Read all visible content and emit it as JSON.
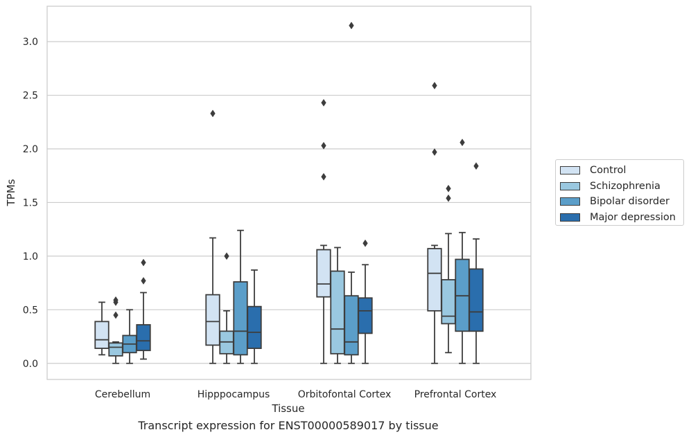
{
  "caption": "Transcript expression for ENST00000589017 by tissue",
  "chart_data": {
    "type": "box",
    "title": "",
    "xlabel": "Tissue",
    "ylabel": "TPMs",
    "ylim": [
      -0.15,
      3.33
    ],
    "yticks": [
      "0.0",
      "0.5",
      "1.0",
      "1.5",
      "2.0",
      "2.5",
      "3.0"
    ],
    "grid": "horizontal",
    "legend_position": "right",
    "categories": [
      "Cerebellum",
      "Hipppocampus",
      "Orbitofontal Cortex",
      "Prefrontal Cortex"
    ],
    "series": [
      {
        "name": "Control",
        "color": "#d2e3f3",
        "boxes": [
          {
            "whislo": 0.08,
            "q1": 0.14,
            "med": 0.22,
            "q3": 0.39,
            "whishi": 0.57,
            "fliers": []
          },
          {
            "whislo": 0.0,
            "q1": 0.17,
            "med": 0.39,
            "q3": 0.64,
            "whishi": 1.17,
            "fliers": [
              2.33
            ]
          },
          {
            "whislo": 0.0,
            "q1": 0.62,
            "med": 0.74,
            "q3": 1.06,
            "whishi": 1.1,
            "fliers": [
              1.74,
              2.03,
              2.43
            ]
          },
          {
            "whislo": 0.0,
            "q1": 0.49,
            "med": 0.84,
            "q3": 1.07,
            "whishi": 1.1,
            "fliers": [
              1.97,
              2.59
            ]
          }
        ]
      },
      {
        "name": "Schizophrenia",
        "color": "#9ac8e0",
        "boxes": [
          {
            "whislo": 0.0,
            "q1": 0.07,
            "med": 0.15,
            "q3": 0.19,
            "whishi": 0.2,
            "fliers": [
              0.45,
              0.57,
              0.59
            ]
          },
          {
            "whislo": 0.0,
            "q1": 0.09,
            "med": 0.2,
            "q3": 0.3,
            "whishi": 0.49,
            "fliers": [
              1.0
            ]
          },
          {
            "whislo": 0.0,
            "q1": 0.09,
            "med": 0.32,
            "q3": 0.86,
            "whishi": 1.08,
            "fliers": []
          },
          {
            "whislo": 0.1,
            "q1": 0.37,
            "med": 0.44,
            "q3": 0.78,
            "whishi": 1.21,
            "fliers": [
              1.54,
              1.63
            ]
          }
        ]
      },
      {
        "name": "Bipolar disorder",
        "color": "#5b9ec9",
        "boxes": [
          {
            "whislo": 0.0,
            "q1": 0.1,
            "med": 0.18,
            "q3": 0.26,
            "whishi": 0.5,
            "fliers": []
          },
          {
            "whislo": 0.0,
            "q1": 0.08,
            "med": 0.3,
            "q3": 0.76,
            "whishi": 1.24,
            "fliers": []
          },
          {
            "whislo": 0.0,
            "q1": 0.08,
            "med": 0.2,
            "q3": 0.63,
            "whishi": 0.85,
            "fliers": [
              3.15
            ]
          },
          {
            "whislo": 0.0,
            "q1": 0.3,
            "med": 0.63,
            "q3": 0.97,
            "whishi": 1.22,
            "fliers": [
              2.06
            ]
          }
        ]
      },
      {
        "name": "Major depression",
        "color": "#2a6ead",
        "boxes": [
          {
            "whislo": 0.04,
            "q1": 0.12,
            "med": 0.21,
            "q3": 0.36,
            "whishi": 0.66,
            "fliers": [
              0.77,
              0.94
            ]
          },
          {
            "whislo": 0.0,
            "q1": 0.14,
            "med": 0.29,
            "q3": 0.53,
            "whishi": 0.87,
            "fliers": []
          },
          {
            "whislo": 0.0,
            "q1": 0.28,
            "med": 0.49,
            "q3": 0.61,
            "whishi": 0.92,
            "fliers": [
              1.12
            ]
          },
          {
            "whislo": 0.0,
            "q1": 0.3,
            "med": 0.48,
            "q3": 0.88,
            "whishi": 1.16,
            "fliers": [
              1.84
            ]
          }
        ]
      }
    ]
  }
}
